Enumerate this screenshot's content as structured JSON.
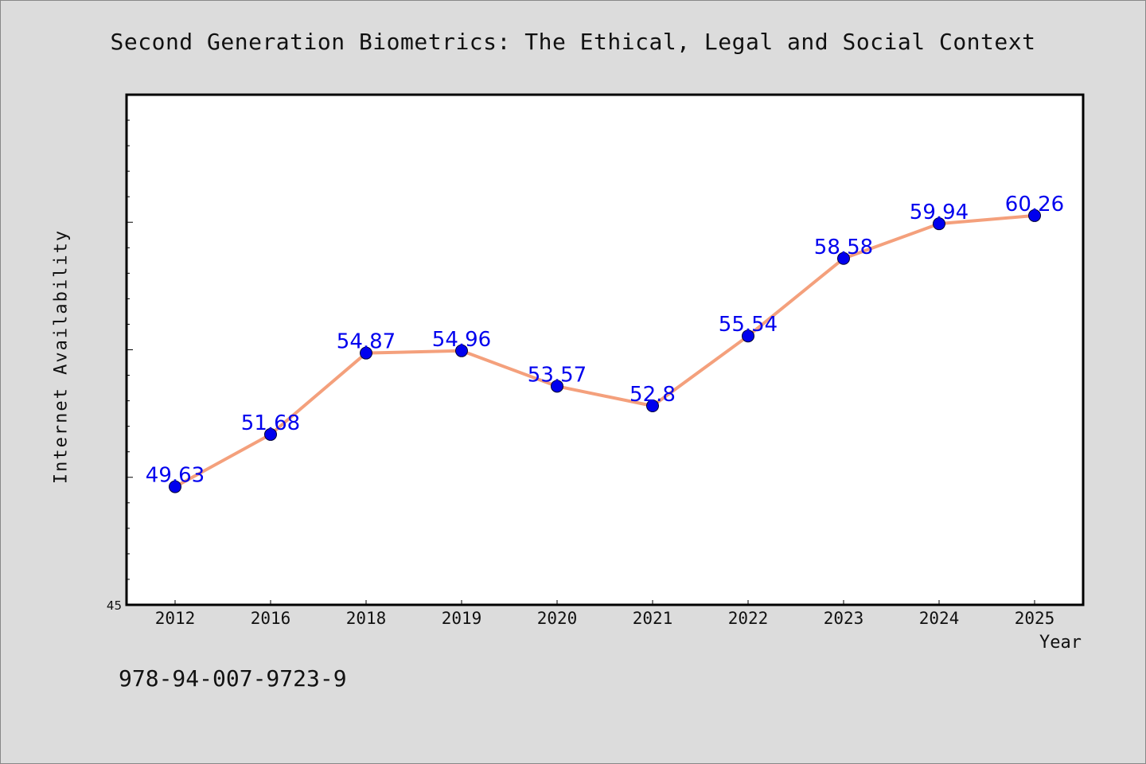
{
  "title": "Second Generation Biometrics: The Ethical, Legal and Social Context",
  "footer_code": "978-94-007-9723-9",
  "colors": {
    "line": "#f4a07c",
    "marker": "#0000ee",
    "label": "#0000ee",
    "background": "#dcdcdc",
    "plot_background": "#ffffff"
  },
  "chart_data": {
    "type": "line",
    "title": "Second Generation Biometrics: The Ethical, Legal and Social Context",
    "xlabel": "Year",
    "ylabel": "Internet Availability",
    "categories": [
      "2012",
      "2016",
      "2018",
      "2019",
      "2020",
      "2021",
      "2022",
      "2023",
      "2024",
      "2025"
    ],
    "series": [
      {
        "values": [
          49.63,
          51.68,
          54.87,
          54.96,
          53.57,
          52.8,
          55.54,
          58.58,
          59.94,
          60.26
        ]
      }
    ],
    "data_labels": [
      "49.63",
      "51.68",
      "54.87",
      "54.96",
      "53.57",
      "52.8",
      "55.54",
      "58.58",
      "59.94",
      "60.26"
    ],
    "ylim": [
      45,
      65
    ],
    "yticks_labeled": [
      "45"
    ],
    "grid": false,
    "legend": "none"
  }
}
